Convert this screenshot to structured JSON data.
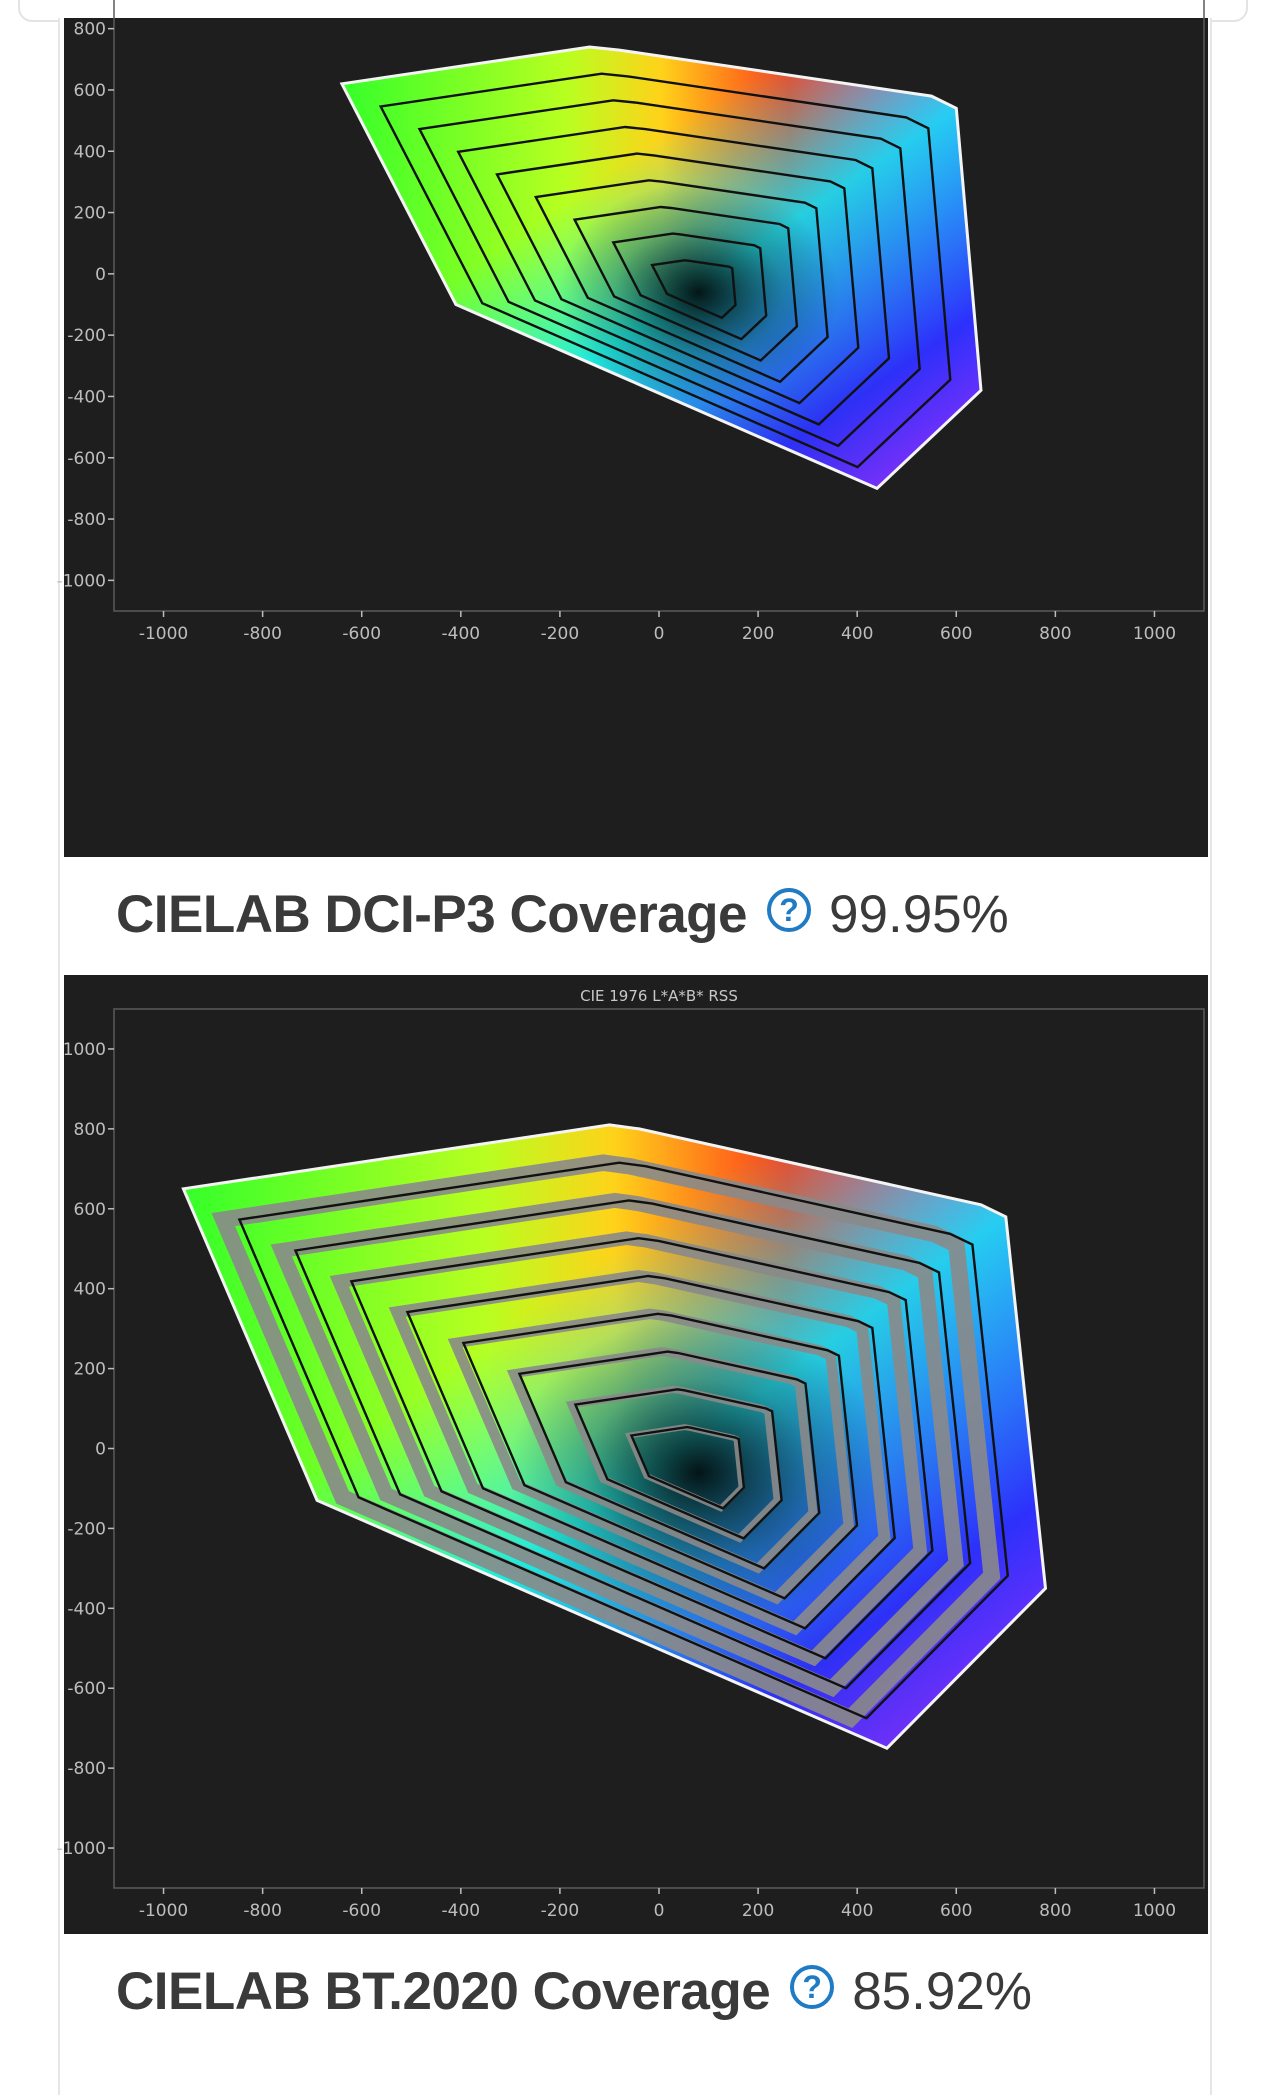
{
  "section1": {
    "label": "CIELAB DCI-P3 Coverage",
    "value": "99.95%",
    "help_icon": "question-circle-icon"
  },
  "section2": {
    "label": "CIELAB BT.2020 Coverage",
    "value": "85.92%",
    "help_icon": "question-circle-icon"
  },
  "colors": {
    "accent": "#1f7bc4",
    "plot_bg": "#1e1e1e",
    "text": "#3a3a3a",
    "uncovered": "#8a8a8a"
  },
  "chart_data": [
    {
      "type": "area",
      "title": "",
      "xlabel": "",
      "ylabel": "",
      "xlim": [
        -1100,
        1100
      ],
      "ylim": [
        -1100,
        900
      ],
      "x_ticks": [
        -1000,
        -800,
        -600,
        -400,
        -200,
        0,
        200,
        400,
        600,
        800,
        1000
      ],
      "y_ticks": [
        800,
        600,
        400,
        200,
        0,
        -200,
        -400,
        -600,
        -800,
        -1000
      ],
      "legend": "none",
      "grid": false,
      "series": [
        {
          "role": "reference-outline",
          "points": [
            [
              -640,
              620
            ],
            [
              -140,
              740
            ],
            [
              -80,
              730
            ],
            [
              550,
              580
            ],
            [
              600,
              540
            ],
            [
              650,
              -380
            ],
            [
              440,
              -700
            ],
            [
              -410,
              -100
            ]
          ]
        }
      ]
    },
    {
      "type": "area",
      "title": "CIE 1976 L*A*B* RSS",
      "xlabel": "",
      "ylabel": "",
      "xlim": [
        -1100,
        1100
      ],
      "ylim": [
        -1100,
        1100
      ],
      "x_ticks": [
        -1000,
        -800,
        -600,
        -400,
        -200,
        0,
        200,
        400,
        600,
        800,
        1000
      ],
      "y_ticks": [
        1000,
        800,
        600,
        400,
        200,
        0,
        -200,
        -400,
        -600,
        -800,
        -1000
      ],
      "legend": "none",
      "grid": false,
      "series": [
        {
          "role": "reference-outline",
          "points": [
            [
              -960,
              650
            ],
            [
              -100,
              810
            ],
            [
              -40,
              800
            ],
            [
              650,
              610
            ],
            [
              700,
              580
            ],
            [
              780,
              -350
            ],
            [
              460,
              -750
            ],
            [
              -690,
              -130
            ]
          ]
        }
      ]
    }
  ]
}
